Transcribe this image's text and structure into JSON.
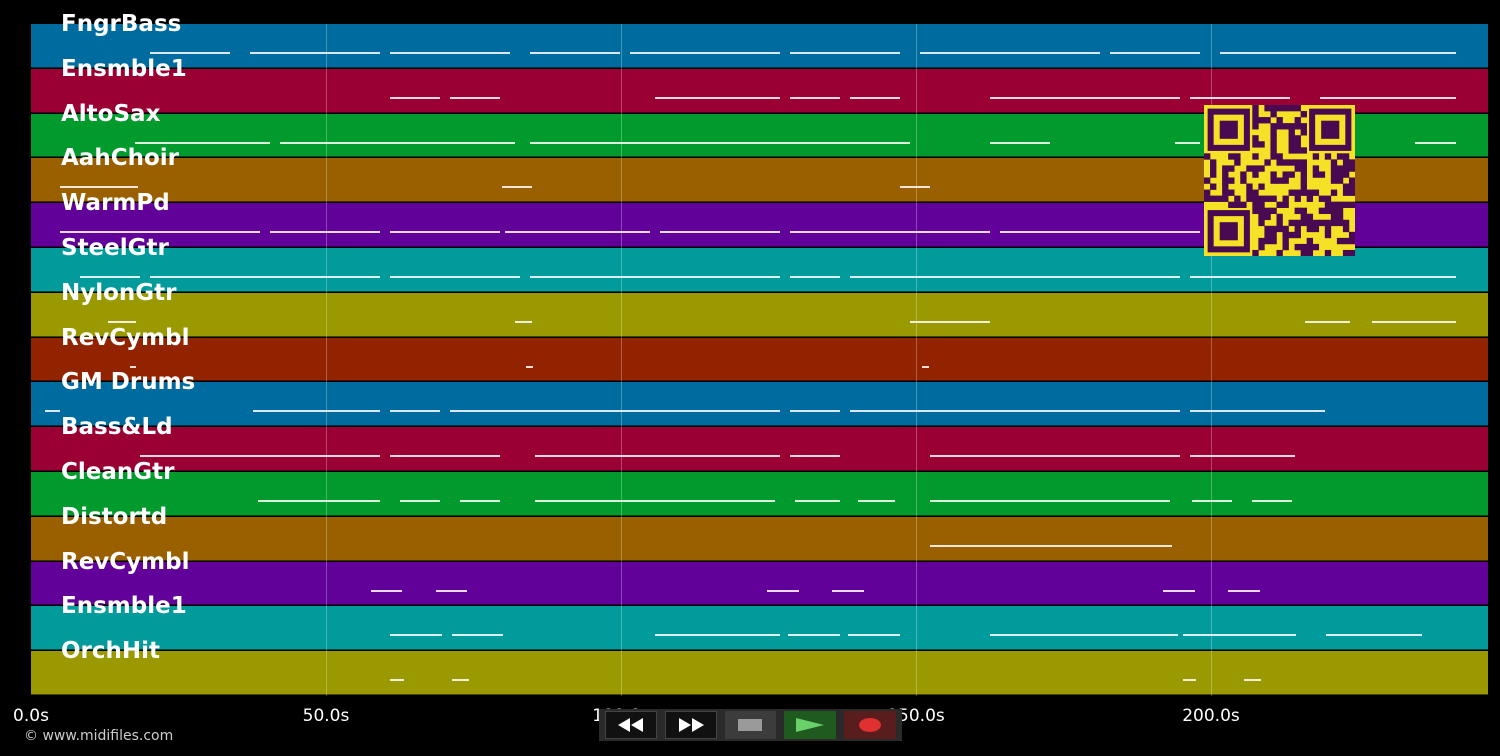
{
  "tracks": [
    {
      "label": "FngrBass",
      "color": "#006b9e"
    },
    {
      "label": "Ensmble1",
      "color": "#9a0033"
    },
    {
      "label": "AltoSax",
      "color": "#009b2c"
    },
    {
      "label": "AahChoir",
      "color": "#9a6000"
    },
    {
      "label": "WarmPd",
      "color": "#62009a"
    },
    {
      "label": "SteelGtr",
      "color": "#009b9a"
    },
    {
      "label": "NylonGtr",
      "color": "#9a9a00"
    },
    {
      "label": "RevCymbl",
      "color": "#922300"
    },
    {
      "label": "GM Drums",
      "color": "#006b9e"
    },
    {
      "label": "Bass&Ld",
      "color": "#9a0033"
    },
    {
      "label": "CleanGtr",
      "color": "#009b2c"
    },
    {
      "label": "Distortd",
      "color": "#9a6000"
    },
    {
      "label": "RevCymbl",
      "color": "#62009a"
    },
    {
      "label": "Ensmble1",
      "color": "#009b9a"
    },
    {
      "label": "OrchHit",
      "color": "#9a9a00"
    }
  ],
  "timeline": {
    "ticks": [
      "0.0s",
      "50.0s",
      "100.0s",
      "150.0s",
      "200.0s"
    ]
  },
  "copyright": "© www.midifiles.com",
  "transport": {
    "rewind_icon": "rewind-icon",
    "forward_icon": "fast-forward-icon",
    "stop_icon": "stop-icon",
    "play_icon": "play-icon",
    "record_icon": "record-icon"
  }
}
